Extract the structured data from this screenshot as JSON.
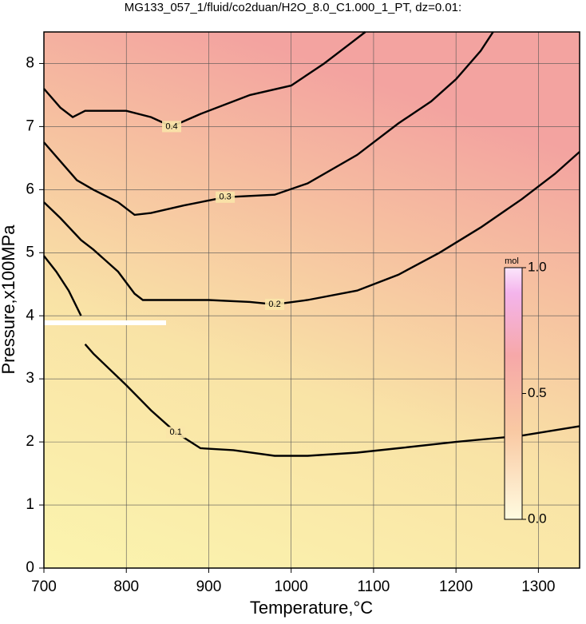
{
  "chart_data": {
    "type": "contour",
    "title": "MG133_057_1/fluid/co2duan/H2O_8.0_C1.000_1_PT, dz=0.01:",
    "xlabel": "Temperature,°C",
    "ylabel": "Pressure,x100MPa",
    "xlim": [
      700,
      1350
    ],
    "ylim": [
      0,
      8.5
    ],
    "xticks": [
      700,
      800,
      900,
      1000,
      1100,
      1200,
      1300
    ],
    "yticks": [
      0,
      1,
      2,
      3,
      4,
      5,
      6,
      7,
      8
    ],
    "grid": true,
    "contours": [
      {
        "level": 0.1,
        "color": "#000000",
        "x": [
          700,
          715,
          730,
          745,
          748,
          750,
          760,
          800,
          830,
          860,
          890,
          930,
          980,
          1020,
          1080,
          1130,
          1200,
          1280,
          1350
        ],
        "y": [
          4.95,
          4.7,
          4.4,
          4.0,
          null,
          3.55,
          3.4,
          2.9,
          2.5,
          2.15,
          1.9,
          1.87,
          1.78,
          1.78,
          1.83,
          1.9,
          2.0,
          2.1,
          2.25
        ]
      },
      {
        "level": 0.2,
        "color": "#000000",
        "x": [
          700,
          720,
          745,
          760,
          790,
          810,
          820,
          900,
          950,
          980,
          1020,
          1080,
          1130,
          1180,
          1230,
          1280,
          1320,
          1350
        ],
        "y": [
          5.8,
          5.55,
          5.2,
          5.05,
          4.7,
          4.35,
          4.25,
          4.25,
          4.22,
          4.18,
          4.25,
          4.4,
          4.65,
          5.0,
          5.4,
          5.85,
          6.25,
          6.6
        ]
      },
      {
        "level": 0.3,
        "color": "#000000",
        "x": [
          700,
          720,
          740,
          760,
          790,
          810,
          830,
          870,
          920,
          980,
          1020,
          1080,
          1130,
          1170,
          1200,
          1230,
          1245
        ],
        "y": [
          6.75,
          6.45,
          6.15,
          6.0,
          5.8,
          5.6,
          5.63,
          5.75,
          5.88,
          5.92,
          6.1,
          6.55,
          7.05,
          7.4,
          7.75,
          8.2,
          8.5
        ]
      },
      {
        "level": 0.4,
        "color": "#000000",
        "x": [
          700,
          720,
          735,
          750,
          800,
          830,
          855,
          890,
          950,
          1000,
          1040,
          1070,
          1090
        ],
        "y": [
          7.6,
          7.3,
          7.15,
          7.25,
          7.25,
          7.15,
          7.0,
          7.2,
          7.5,
          7.65,
          8.0,
          8.3,
          8.5
        ]
      }
    ],
    "colorbar": {
      "label": "mol",
      "lim": [
        0,
        1
      ],
      "ticks": [
        {
          "value": 0,
          "label": "0.0"
        },
        {
          "value": 0.5,
          "label": "0.5"
        },
        {
          "value": 1,
          "label": "1.0"
        }
      ]
    }
  }
}
